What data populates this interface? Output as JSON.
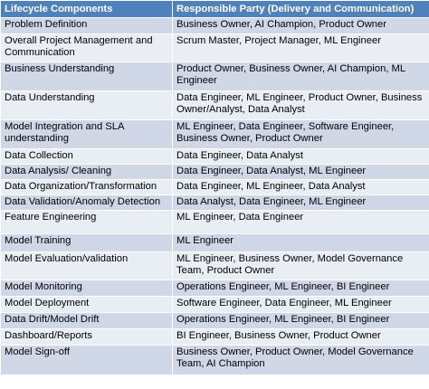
{
  "table": {
    "headers": [
      "Lifecycle Components",
      "Responsible Party  (Delivery and Communication)"
    ],
    "rows": [
      {
        "component": "Problem Definition",
        "party": "Business Owner, AI Champion, Product Owner"
      },
      {
        "component": "Overall Project Management and Communication",
        "party": "Scrum Master, Project Manager, ML Engineer"
      },
      {
        "component": "Business Understanding",
        "party": "Product Owner, Business Owner, AI Champion, ML Engineer"
      },
      {
        "component": "Data Understanding",
        "party": "Data Engineer, ML Engineer, Product Owner, Business Owner/Analyst, Data Analyst"
      },
      {
        "component": "Model Integration and SLA understanding",
        "party": "ML Engineer, Data Engineer, Software Engineer, Business Owner, Product Owner"
      },
      {
        "component": "Data Collection",
        "party": "Data Engineer, Data Analyst"
      },
      {
        "component": "Data Analysis/ Cleaning",
        "party": "Data Engineer, Data Analyst, ML Engineer"
      },
      {
        "component": "Data Organization/Transformation",
        "party": "Data Engineer, ML Engineer, Data Analyst"
      },
      {
        "component": "Data Validation/Anomaly Detection",
        "party": "Data Analyst, Data Engineer, ML Engineer"
      },
      {
        "component": "Feature Engineering",
        "party": "ML Engineer, Data Engineer"
      },
      {
        "component": "Model Training",
        "party": "ML Engineer"
      },
      {
        "component": "Model Evaluation/validation",
        "party": "ML Engineer, Business Owner, Model Governance Team, Product Owner"
      },
      {
        "component": "Model Monitoring",
        "party": "Operations Engineer, ML Engineer, BI Engineer"
      },
      {
        "component": "Model Deployment",
        "party": "Software Engineer, Data Engineer, ML Engineer"
      },
      {
        "component": "Data Drift/Model Drift",
        "party": "Operations Engineer, ML Engineer, BI Engineer"
      },
      {
        "component": "Dashboard/Reports",
        "party": "BI Engineer, Business Owner, Product Owner"
      },
      {
        "component": "Model Sign-off",
        "party": "Business Owner, Product Owner, Model Governance Team, AI Champion"
      }
    ]
  }
}
